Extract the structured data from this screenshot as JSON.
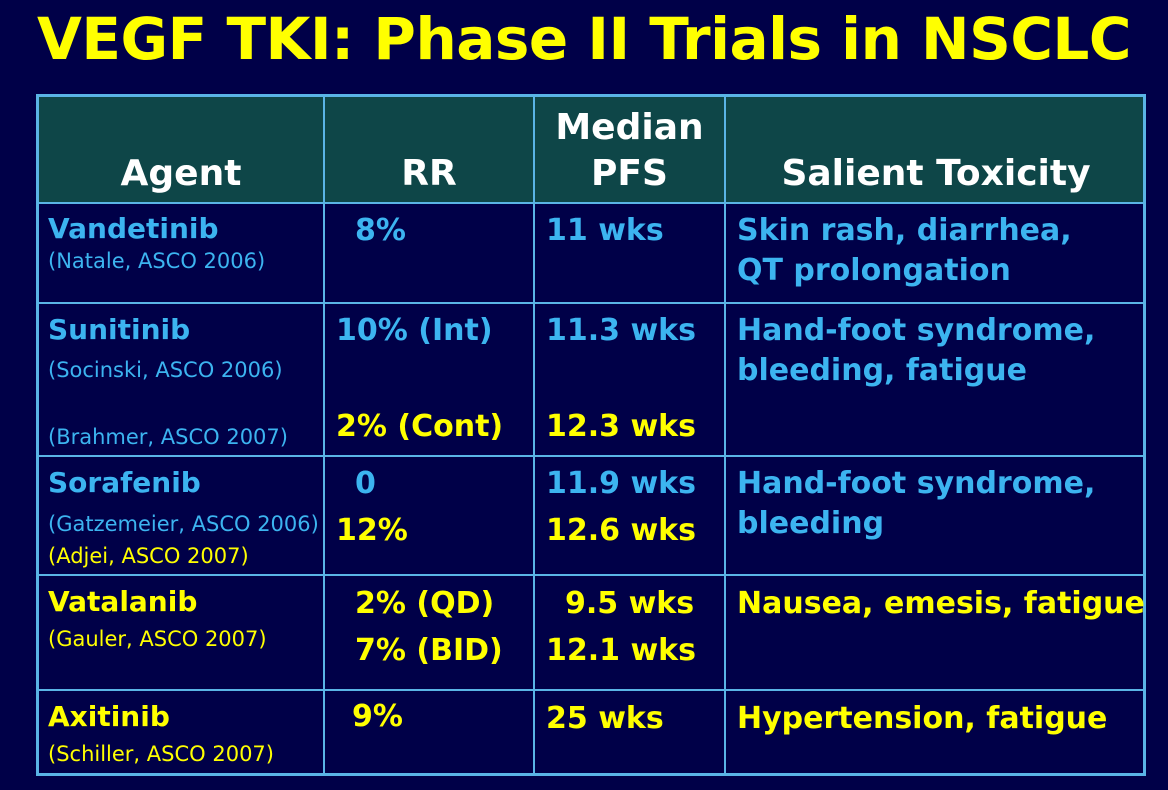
{
  "title": "VEGF TKI: Phase II Trials in NSCLC",
  "headers": {
    "agent": "Agent",
    "rr": "RR",
    "pfs_line1": "Median",
    "pfs_line2": "PFS",
    "toxicity": "Salient Toxicity"
  },
  "rows": [
    {
      "agent": "Vandetinib",
      "refs": [
        "(Natale, ASCO 2006)"
      ],
      "rr": [
        "8%"
      ],
      "pfs": [
        "11 wks"
      ],
      "toxicity": [
        "Skin rash, diarrhea,",
        "QT prolongation"
      ]
    },
    {
      "agent": "Sunitinib",
      "refs": [
        "(Socinski, ASCO 2006)",
        "(Brahmer, ASCO 2007)"
      ],
      "rr": [
        "10% (Int)",
        "2% (Cont)"
      ],
      "pfs": [
        "11.3 wks",
        "12.3 wks"
      ],
      "toxicity": [
        "Hand-foot syndrome,",
        "bleeding, fatigue"
      ]
    },
    {
      "agent": "Sorafenib",
      "refs": [
        "(Gatzemeier, ASCO 2006)",
        "(Adjei, ASCO 2007)"
      ],
      "rr": [
        "0",
        "12%"
      ],
      "pfs": [
        "11.9 wks",
        "12.6 wks"
      ],
      "toxicity": [
        "Hand-foot syndrome,",
        "bleeding"
      ]
    },
    {
      "agent": "Vatalanib",
      "refs": [
        "(Gauler, ASCO 2007)"
      ],
      "rr": [
        "2% (QD)",
        "7% (BID)"
      ],
      "pfs": [
        "9.5 wks",
        "12.1 wks"
      ],
      "toxicity": [
        "Nausea, emesis, fatigue"
      ]
    },
    {
      "agent": "Axitinib",
      "refs": [
        "(Schiller, ASCO 2007)"
      ],
      "rr": [
        "9%"
      ],
      "pfs": [
        "25 wks"
      ],
      "toxicity": [
        "Hypertension, fatigue"
      ]
    }
  ],
  "colors": {
    "background": "#000048",
    "title": "#ffff00",
    "header_bg": "#0e4648",
    "border": "#5ab4e6",
    "blue_text": "#3cb4f0",
    "yellow_text": "#ffff00"
  }
}
